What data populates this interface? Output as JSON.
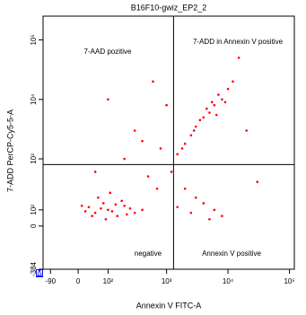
{
  "chart_data": {
    "type": "scatter",
    "title": "B16F10-gwiz_EP2_2",
    "x_label": "Annexin V FITC-A",
    "y_label": "7-ADD PerCP-Cy5-5-A",
    "xscale": "logicle",
    "yscale": "logicle",
    "xlim": [
      -126,
      120000
    ],
    "ylim": [
      -384,
      250000
    ],
    "xticks": [
      -90,
      0,
      {
        "value": 100,
        "label": "10²"
      },
      {
        "value": 1000,
        "label": "10³"
      },
      {
        "value": 10000,
        "label": "10⁴"
      },
      {
        "value": 100000,
        "label": "10⁵"
      }
    ],
    "yticks": [
      -384,
      0,
      {
        "value": 100,
        "label": "10²"
      },
      {
        "value": 1000,
        "label": "10³"
      },
      {
        "value": 10000,
        "label": "10⁴"
      },
      {
        "value": 100000,
        "label": "10⁵"
      }
    ],
    "quadrant_gates": {
      "x": 1300,
      "y": 800
    },
    "quadrant_labels": [
      "7-AAD pozitive",
      "7-ADD in Annexin V positive",
      "negative",
      "Annexin V positive"
    ],
    "marker": "M",
    "series": [
      {
        "color": "#ff0000",
        "x": [
          30,
          50,
          80,
          100,
          150,
          200,
          60,
          120,
          250,
          40,
          90,
          300,
          180,
          70,
          20,
          140,
          400,
          110,
          220,
          10,
          1500,
          2500,
          4000,
          6000,
          3000,
          8000,
          2000,
          5000,
          1500,
          2000,
          2500,
          3000,
          4000,
          5000,
          6000,
          8000,
          10000,
          3500,
          7000,
          9000,
          5500,
          12000,
          4500,
          6500,
          2800,
          1800,
          500,
          300,
          100,
          800,
          1200,
          700,
          20000,
          30000,
          600,
          200,
          1000,
          15000,
          50,
          400
        ],
        "values": [
          120,
          80,
          150,
          100,
          60,
          130,
          200,
          90,
          110,
          60,
          40,
          80,
          170,
          110,
          90,
          140,
          100,
          250,
          70,
          130,
          120,
          80,
          150,
          100,
          200,
          60,
          300,
          40,
          1200,
          1800,
          2500,
          3500,
          5000,
          6000,
          8000,
          10000,
          15000,
          4500,
          12000,
          9000,
          9000,
          20000,
          7000,
          5500,
          3000,
          1500,
          500,
          3000,
          10000,
          1500,
          600,
          300,
          3000,
          400,
          20000,
          1000,
          8000,
          50000,
          600,
          2000
        ]
      }
    ]
  }
}
